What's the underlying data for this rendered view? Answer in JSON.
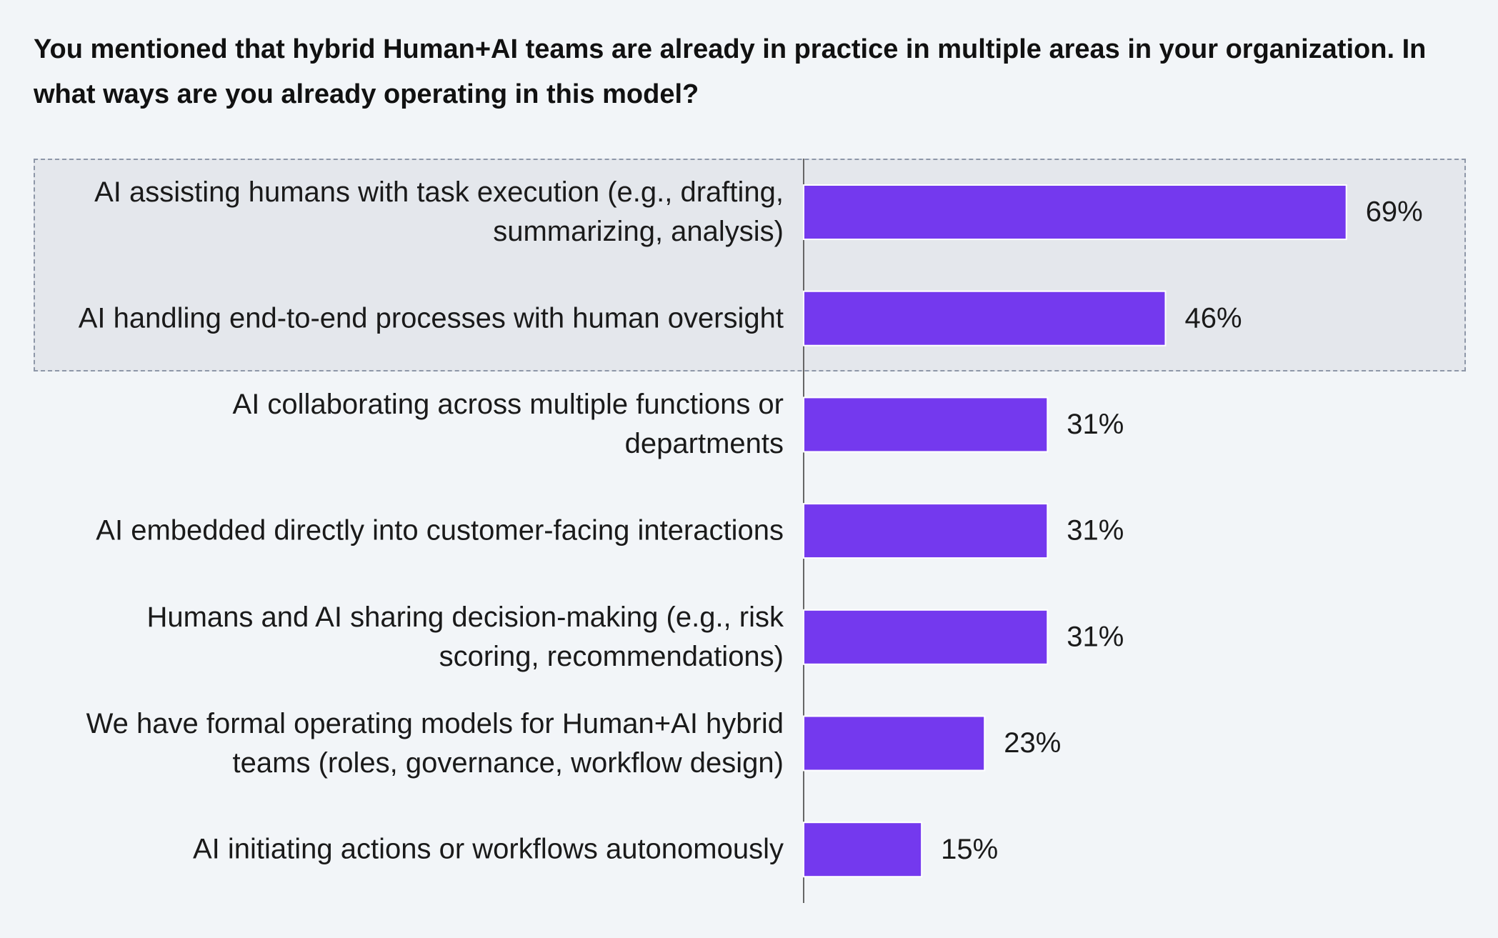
{
  "chart_data": {
    "type": "bar",
    "orientation": "horizontal",
    "title": "You mentioned that hybrid Human+AI teams are already in practice in multiple areas in your organization. In what ways are you already operating in this model?",
    "categories": [
      "AI assisting humans with task execution (e.g., drafting, summarizing, analysis)",
      "AI handling end-to-end processes with human oversight",
      "AI collaborating across multiple functions or departments",
      "AI embedded directly into customer-facing interactions",
      "Humans and AI sharing decision-making (e.g., risk scoring, recommendations)",
      "We have formal operating models for Human+AI hybrid teams (roles, governance, workflow design)",
      "AI initiating actions or workflows autonomously"
    ],
    "values": [
      69,
      46,
      31,
      31,
      31,
      23,
      15
    ],
    "value_labels": [
      "69%",
      "46%",
      "31%",
      "31%",
      "31%",
      "23%",
      "15%"
    ],
    "color": "#7439ee",
    "xlim": [
      0,
      100
    ]
  }
}
